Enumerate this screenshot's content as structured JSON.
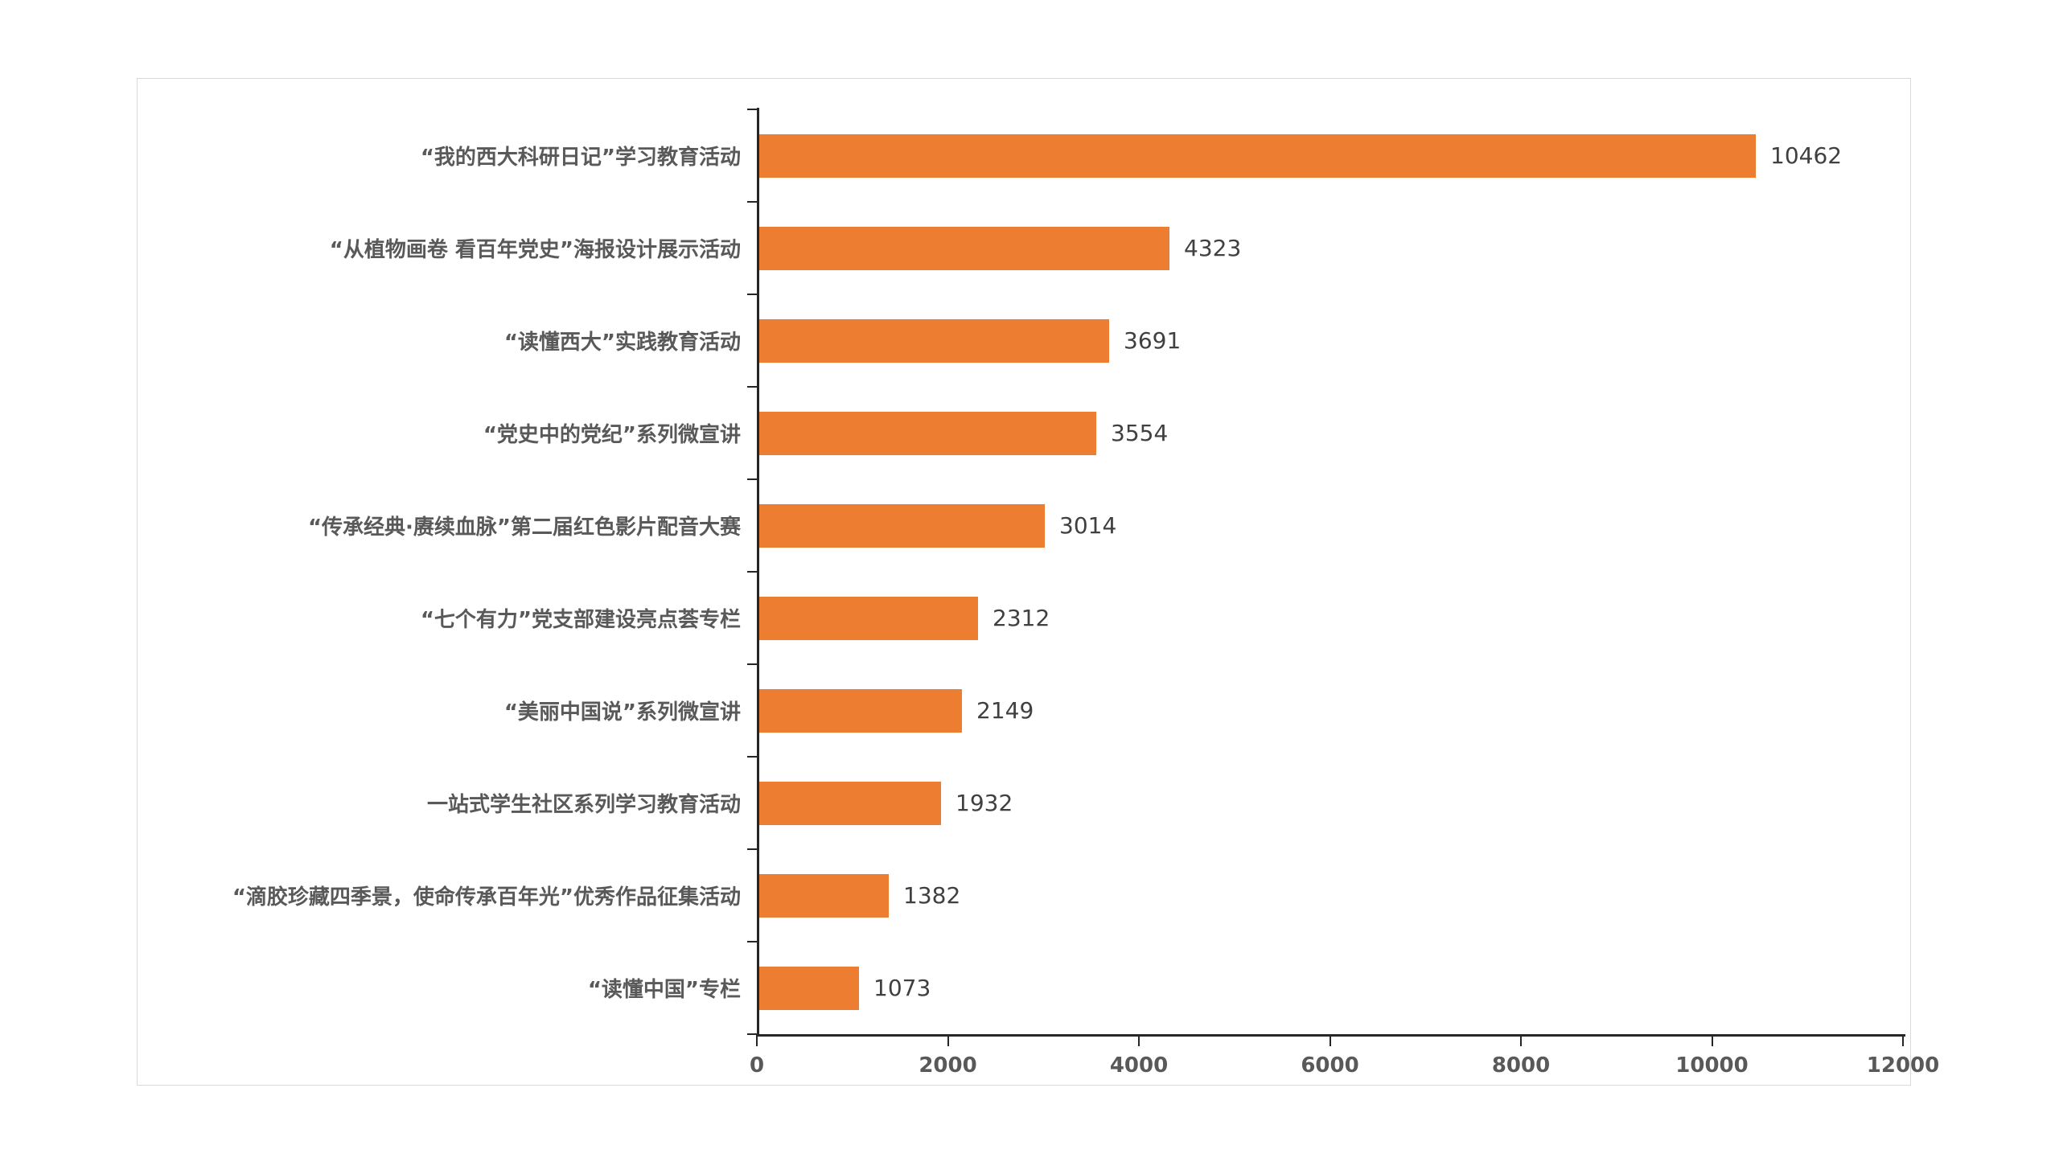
{
  "chart_data": {
    "type": "bar",
    "orientation": "horizontal",
    "title": "",
    "xlabel": "",
    "ylabel": "",
    "categories": [
      "“我的西大科研日记”学习教育活动",
      "“从植物画卷 看百年党史”海报设计展示活动",
      "“读懂西大”实践教育活动",
      "“党史中的党纪”系列微宣讲",
      "“传承经典·赓续血脉”第二届红色影片配音大赛",
      "“七个有力”党支部建设亮点荟专栏",
      "“美丽中国说”系列微宣讲",
      "一站式学生社区系列学习教育活动",
      "“滴胶珍藏四季景，使命传承百年光”优秀作品征集活动",
      "“读懂中国”专栏"
    ],
    "values": [
      10462,
      4323,
      3691,
      3554,
      3014,
      2312,
      2149,
      1932,
      1382,
      1073
    ],
    "value_labels": [
      "10462",
      "4323",
      "3691",
      "3554",
      "3014",
      "2312",
      "2149",
      "1932",
      "1382",
      "1073"
    ],
    "xlim": [
      0,
      12000
    ],
    "x_tick_values": [
      0,
      2000,
      4000,
      6000,
      8000,
      10000,
      12000
    ],
    "x_tick_labels": [
      "0",
      "2000",
      "4000",
      "6000",
      "8000",
      "10000",
      "12000"
    ],
    "grid": false,
    "legend_position": "none",
    "colors": {
      "bar": "#ED7D31",
      "category_label": "#595959",
      "value_label": "#404040",
      "axis": "#262626",
      "tick_label": "#595959",
      "card_border": "#D9D9D9",
      "background": "#FFFFFF"
    }
  }
}
